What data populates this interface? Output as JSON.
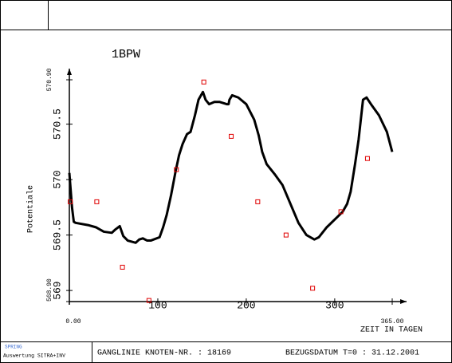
{
  "chart_data": {
    "type": "line",
    "title": "1BPW",
    "y_label": "Potentiale",
    "x_label": "ZEIT IN TAGEN",
    "xlim": [
      0,
      365
    ],
    "xticks": [
      {
        "value": 0,
        "label": "0.00"
      },
      100,
      200,
      300,
      {
        "value": 365,
        "label": "365.00"
      }
    ],
    "ylim": [
      568.9,
      570.9
    ],
    "yticks": [
      {
        "value": 568.9,
        "label": "568.90"
      },
      569.0,
      569.5,
      570.0,
      570.5,
      {
        "value": 570.9,
        "label": "570.90"
      }
    ],
    "series": [
      {
        "color": "#000000",
        "marker": "line",
        "x": [
          0,
          3,
          5,
          7,
          21,
          30,
          39,
          48,
          52,
          57,
          61,
          66,
          75,
          79,
          83,
          88,
          92,
          102,
          106,
          110,
          115,
          120,
          124,
          128,
          133,
          137,
          142,
          146,
          151,
          154,
          158,
          164,
          170,
          178,
          180,
          181,
          184,
          191,
          200,
          209,
          214,
          218,
          223,
          232,
          241,
          250,
          259,
          268,
          277,
          282,
          291,
          300,
          309,
          314,
          318,
          323,
          327,
          332,
          336,
          341,
          350,
          359,
          365
        ],
        "values": [
          570.06,
          569.75,
          569.62,
          569.61,
          569.59,
          569.57,
          569.53,
          569.52,
          569.55,
          569.58,
          569.49,
          569.45,
          569.43,
          569.46,
          569.47,
          569.45,
          569.45,
          569.48,
          569.57,
          569.68,
          569.86,
          570.07,
          570.22,
          570.32,
          570.41,
          570.43,
          570.58,
          570.72,
          570.79,
          570.72,
          570.68,
          570.7,
          570.7,
          570.68,
          570.68,
          570.72,
          570.76,
          570.74,
          570.68,
          570.54,
          570.4,
          570.25,
          570.14,
          570.05,
          569.95,
          569.78,
          569.61,
          569.5,
          569.46,
          569.48,
          569.57,
          569.64,
          569.71,
          569.78,
          569.89,
          570.14,
          570.36,
          570.72,
          570.74,
          570.68,
          570.58,
          570.43,
          570.25
        ]
      },
      {
        "color": "#e00000",
        "marker": "square",
        "x": [
          1,
          31,
          60,
          90,
          121,
          152,
          183,
          213,
          245,
          275,
          307,
          337
        ],
        "values": [
          569.8,
          569.8,
          569.21,
          568.91,
          570.09,
          570.88,
          570.39,
          569.8,
          569.5,
          569.02,
          569.71,
          570.19
        ]
      }
    ]
  },
  "footer": {
    "logo": "SPRING",
    "app": "Auswertung SITRA+INV",
    "node": "GANGLINIE KNOTEN-NR. : 18169",
    "date": "BEZUGSDATUM T=0 : 31.12.2001"
  }
}
